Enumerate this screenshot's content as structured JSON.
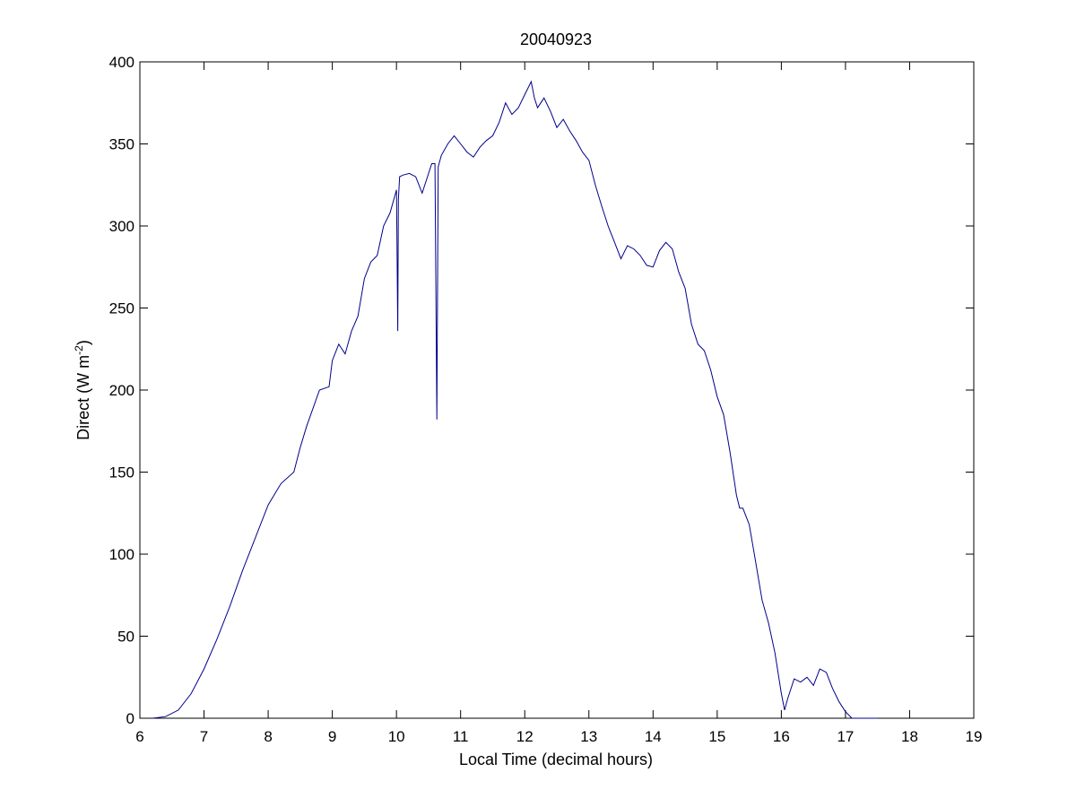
{
  "chart_data": {
    "type": "line",
    "title": "20040923",
    "xlabel": "Local Time (decimal hours)",
    "ylabel_main": "Direct (W m",
    "ylabel_sup": "-2",
    "ylabel_close": ")",
    "xlim": [
      6,
      19
    ],
    "ylim": [
      0,
      400
    ],
    "xticks": [
      6,
      7,
      8,
      9,
      10,
      11,
      12,
      13,
      14,
      15,
      16,
      17,
      18,
      19
    ],
    "yticks": [
      0,
      50,
      100,
      150,
      200,
      250,
      300,
      350,
      400
    ],
    "grid": false,
    "line_color": "#00008b",
    "series": [
      {
        "x": [
          6.2,
          6.4,
          6.6,
          6.8,
          7.0,
          7.2,
          7.4,
          7.6,
          7.8,
          8.0,
          8.2,
          8.4,
          8.5,
          8.6,
          8.8,
          8.95,
          9.0,
          9.1,
          9.2,
          9.3,
          9.4,
          9.5,
          9.6,
          9.7,
          9.8,
          9.9,
          10.0,
          10.02,
          10.03,
          10.05,
          10.1,
          10.2,
          10.3,
          10.4,
          10.55,
          10.6,
          10.63,
          10.65,
          10.7,
          10.8,
          10.9,
          11.0,
          11.1,
          11.2,
          11.3,
          11.4,
          11.5,
          11.6,
          11.7,
          11.8,
          11.9,
          12.0,
          12.1,
          12.15,
          12.2,
          12.3,
          12.4,
          12.5,
          12.6,
          12.7,
          12.8,
          12.9,
          13.0,
          13.1,
          13.2,
          13.3,
          13.4,
          13.5,
          13.6,
          13.7,
          13.8,
          13.9,
          14.0,
          14.1,
          14.2,
          14.3,
          14.4,
          14.5,
          14.6,
          14.7,
          14.8,
          14.9,
          15.0,
          15.1,
          15.2,
          15.3,
          15.35,
          15.4,
          15.5,
          15.6,
          15.7,
          15.8,
          15.9,
          16.0,
          16.05,
          16.1,
          16.2,
          16.3,
          16.4,
          16.5,
          16.6,
          16.7,
          16.8,
          16.9,
          17.0,
          17.1,
          17.2,
          17.3,
          17.5
        ],
        "y": [
          0,
          1,
          5,
          15,
          30,
          48,
          68,
          90,
          110,
          130,
          143,
          150,
          165,
          178,
          200,
          202,
          218,
          228,
          222,
          236,
          245,
          268,
          278,
          282,
          300,
          308,
          322,
          236,
          316,
          330,
          331,
          332,
          330,
          320,
          338,
          338,
          182,
          336,
          343,
          350,
          355,
          350,
          345,
          342,
          348,
          352,
          355,
          363,
          375,
          368,
          372,
          380,
          388,
          378,
          372,
          378,
          370,
          360,
          365,
          358,
          352,
          345,
          340,
          325,
          312,
          300,
          290,
          280,
          288,
          286,
          282,
          276,
          275,
          285,
          290,
          286,
          272,
          262,
          240,
          228,
          224,
          212,
          196,
          185,
          162,
          136,
          128,
          128,
          118,
          95,
          72,
          58,
          40,
          15,
          5,
          12,
          24,
          22,
          25,
          20,
          30,
          28,
          18,
          10,
          4,
          0,
          0,
          0,
          0
        ]
      }
    ]
  }
}
